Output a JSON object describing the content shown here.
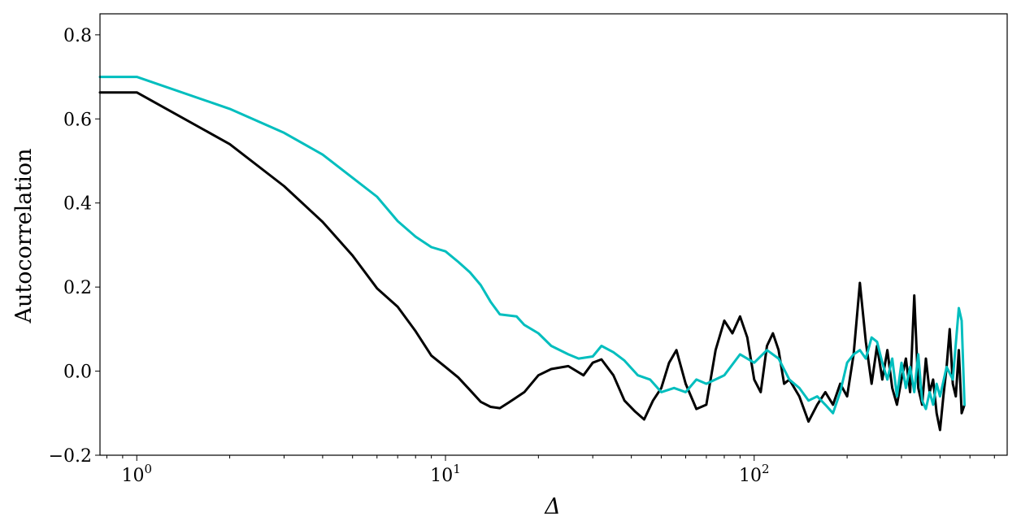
{
  "chart_data": {
    "type": "line",
    "xscale": "log",
    "xlabel": "Δ",
    "ylabel": "Autocorrelation",
    "xlim": [
      0.76,
      660
    ],
    "ylim": [
      -0.2,
      0.85
    ],
    "grid": false,
    "yticks": [
      -0.2,
      0.0,
      0.2,
      0.4,
      0.6,
      0.8
    ],
    "ytick_labels": [
      "−0.2",
      "0.0",
      "0.2",
      "0.4",
      "0.6",
      "0.8"
    ],
    "xticks": [
      {
        "base": "10",
        "exp": "0",
        "value": 1
      },
      {
        "base": "10",
        "exp": "1",
        "value": 10
      },
      {
        "base": "10",
        "exp": "2",
        "value": 100
      }
    ],
    "series": [
      {
        "color": "#000000",
        "points": [
          [
            0.76,
            0.663
          ],
          [
            1,
            0.663
          ],
          [
            2,
            0.54
          ],
          [
            3,
            0.44
          ],
          [
            4,
            0.355
          ],
          [
            5,
            0.275
          ],
          [
            6,
            0.197
          ],
          [
            7,
            0.153
          ],
          [
            8,
            0.095
          ],
          [
            9,
            0.037
          ],
          [
            10,
            0.01
          ],
          [
            11,
            -0.015
          ],
          [
            12,
            -0.045
          ],
          [
            13,
            -0.073
          ],
          [
            14,
            -0.085
          ],
          [
            15,
            -0.088
          ],
          [
            16,
            -0.075
          ],
          [
            18,
            -0.05
          ],
          [
            20,
            -0.01
          ],
          [
            22,
            0.005
          ],
          [
            25,
            0.012
          ],
          [
            28,
            -0.01
          ],
          [
            30,
            0.02
          ],
          [
            32,
            0.028
          ],
          [
            35,
            -0.01
          ],
          [
            38,
            -0.07
          ],
          [
            41,
            -0.095
          ],
          [
            44,
            -0.115
          ],
          [
            47,
            -0.07
          ],
          [
            50,
            -0.04
          ],
          [
            53,
            0.02
          ],
          [
            56,
            0.05
          ],
          [
            60,
            -0.03
          ],
          [
            65,
            -0.09
          ],
          [
            70,
            -0.08
          ],
          [
            75,
            0.05
          ],
          [
            80,
            0.12
          ],
          [
            85,
            0.09
          ],
          [
            90,
            0.13
          ],
          [
            95,
            0.08
          ],
          [
            100,
            -0.02
          ],
          [
            105,
            -0.05
          ],
          [
            110,
            0.06
          ],
          [
            115,
            0.09
          ],
          [
            120,
            0.05
          ],
          [
            125,
            -0.03
          ],
          [
            130,
            -0.02
          ],
          [
            140,
            -0.06
          ],
          [
            150,
            -0.12
          ],
          [
            160,
            -0.08
          ],
          [
            170,
            -0.05
          ],
          [
            180,
            -0.08
          ],
          [
            190,
            -0.03
          ],
          [
            200,
            -0.06
          ],
          [
            210,
            0.04
          ],
          [
            220,
            0.21
          ],
          [
            230,
            0.07
          ],
          [
            240,
            -0.03
          ],
          [
            250,
            0.06
          ],
          [
            260,
            -0.02
          ],
          [
            270,
            0.05
          ],
          [
            280,
            -0.04
          ],
          [
            290,
            -0.08
          ],
          [
            300,
            -0.02
          ],
          [
            310,
            0.03
          ],
          [
            320,
            -0.05
          ],
          [
            330,
            0.18
          ],
          [
            340,
            -0.04
          ],
          [
            350,
            -0.08
          ],
          [
            360,
            0.03
          ],
          [
            370,
            -0.05
          ],
          [
            380,
            -0.02
          ],
          [
            390,
            -0.1
          ],
          [
            400,
            -0.14
          ],
          [
            410,
            -0.06
          ],
          [
            420,
            0.01
          ],
          [
            430,
            0.1
          ],
          [
            440,
            -0.03
          ],
          [
            450,
            -0.06
          ],
          [
            460,
            0.05
          ],
          [
            470,
            -0.1
          ],
          [
            480,
            -0.08
          ]
        ]
      },
      {
        "color": "#00bebe",
        "points": [
          [
            0.76,
            0.7
          ],
          [
            1,
            0.7
          ],
          [
            2,
            0.624
          ],
          [
            3,
            0.567
          ],
          [
            4,
            0.515
          ],
          [
            5,
            0.46
          ],
          [
            6,
            0.415
          ],
          [
            7,
            0.357
          ],
          [
            8,
            0.32
          ],
          [
            9,
            0.295
          ],
          [
            10,
            0.285
          ],
          [
            11,
            0.26
          ],
          [
            12,
            0.235
          ],
          [
            13,
            0.205
          ],
          [
            14,
            0.165
          ],
          [
            15,
            0.135
          ],
          [
            17,
            0.13
          ],
          [
            18,
            0.11
          ],
          [
            20,
            0.09
          ],
          [
            22,
            0.06
          ],
          [
            25,
            0.04
          ],
          [
            27,
            0.03
          ],
          [
            30,
            0.035
          ],
          [
            32,
            0.06
          ],
          [
            35,
            0.045
          ],
          [
            38,
            0.025
          ],
          [
            42,
            -0.01
          ],
          [
            46,
            -0.02
          ],
          [
            50,
            -0.05
          ],
          [
            55,
            -0.04
          ],
          [
            60,
            -0.05
          ],
          [
            65,
            -0.02
          ],
          [
            70,
            -0.03
          ],
          [
            80,
            -0.01
          ],
          [
            90,
            0.04
          ],
          [
            100,
            0.02
          ],
          [
            110,
            0.05
          ],
          [
            120,
            0.03
          ],
          [
            130,
            -0.02
          ],
          [
            140,
            -0.04
          ],
          [
            150,
            -0.07
          ],
          [
            160,
            -0.06
          ],
          [
            170,
            -0.08
          ],
          [
            180,
            -0.1
          ],
          [
            190,
            -0.05
          ],
          [
            200,
            0.02
          ],
          [
            210,
            0.04
          ],
          [
            220,
            0.05
          ],
          [
            230,
            0.03
          ],
          [
            240,
            0.08
          ],
          [
            250,
            0.07
          ],
          [
            260,
            0.02
          ],
          [
            270,
            -0.02
          ],
          [
            280,
            0.03
          ],
          [
            290,
            -0.06
          ],
          [
            300,
            0.02
          ],
          [
            310,
            -0.04
          ],
          [
            320,
            0.01
          ],
          [
            330,
            -0.05
          ],
          [
            340,
            0.04
          ],
          [
            350,
            -0.07
          ],
          [
            360,
            -0.09
          ],
          [
            370,
            -0.05
          ],
          [
            380,
            -0.08
          ],
          [
            390,
            -0.03
          ],
          [
            400,
            -0.06
          ],
          [
            420,
            0.01
          ],
          [
            440,
            -0.02
          ],
          [
            460,
            0.15
          ],
          [
            470,
            0.12
          ],
          [
            480,
            -0.08
          ]
        ]
      }
    ]
  }
}
